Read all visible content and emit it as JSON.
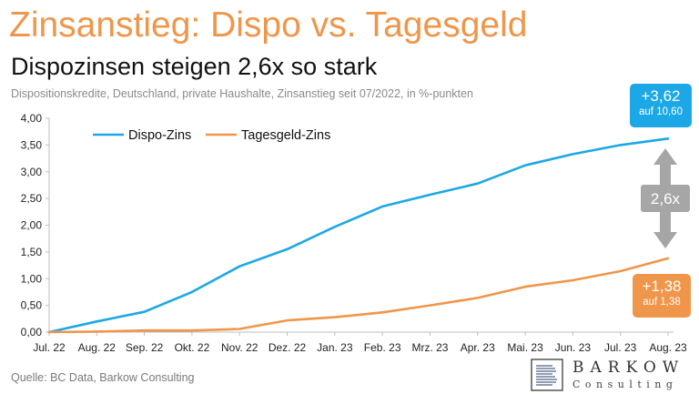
{
  "title": "Zinsanstieg: Dispo vs. Tagesgeld",
  "subtitle": "Dispozinsen steigen 2,6x so stark",
  "description": "Dispositionskredite, Deutschland, private Haushalte, Zinsanstieg seit 07/2022, in %-punkten",
  "source": "Quelle: BC Data,  Barkow Consulting",
  "logo": {
    "name": "BARKOW",
    "sub": "Consulting"
  },
  "colors": {
    "dispo": "#1ca8e6",
    "tagesgeld": "#f0964a",
    "arrow": "#a6a6a6",
    "axis": "#bfbfbf"
  },
  "chart_data": {
    "type": "line",
    "x": [
      "Jul. 22",
      "Aug. 22",
      "Sep. 22",
      "Okt. 22",
      "Nov. 22",
      "Dez. 22",
      "Jan. 23",
      "Feb. 23",
      "Mrz. 23",
      "Apr. 23",
      "Mai. 23",
      "Jun. 23",
      "Jul. 23",
      "Aug. 23"
    ],
    "series": [
      {
        "name": "Dispo-Zins",
        "values": [
          0.0,
          0.2,
          0.38,
          0.75,
          1.23,
          1.55,
          1.97,
          2.35,
          2.57,
          2.78,
          3.12,
          3.33,
          3.5,
          3.62
        ]
      },
      {
        "name": "Tagesgeld-Zins",
        "values": [
          0.0,
          0.01,
          0.03,
          0.03,
          0.06,
          0.22,
          0.28,
          0.37,
          0.5,
          0.64,
          0.85,
          0.97,
          1.14,
          1.38
        ]
      }
    ],
    "ylim": [
      0,
      4
    ],
    "yticks": [
      "0,00",
      "0,50",
      "1,00",
      "1,50",
      "2,00",
      "2,50",
      "3,00",
      "3,50",
      "4,00"
    ],
    "grid": false,
    "legend": "top-left",
    "annotations": {
      "dispo_big": "+3,62",
      "dispo_small": "auf 10,60",
      "tagesgeld_big": "+1,38",
      "tagesgeld_small": "auf 1,38",
      "ratio": "2,6x"
    }
  }
}
